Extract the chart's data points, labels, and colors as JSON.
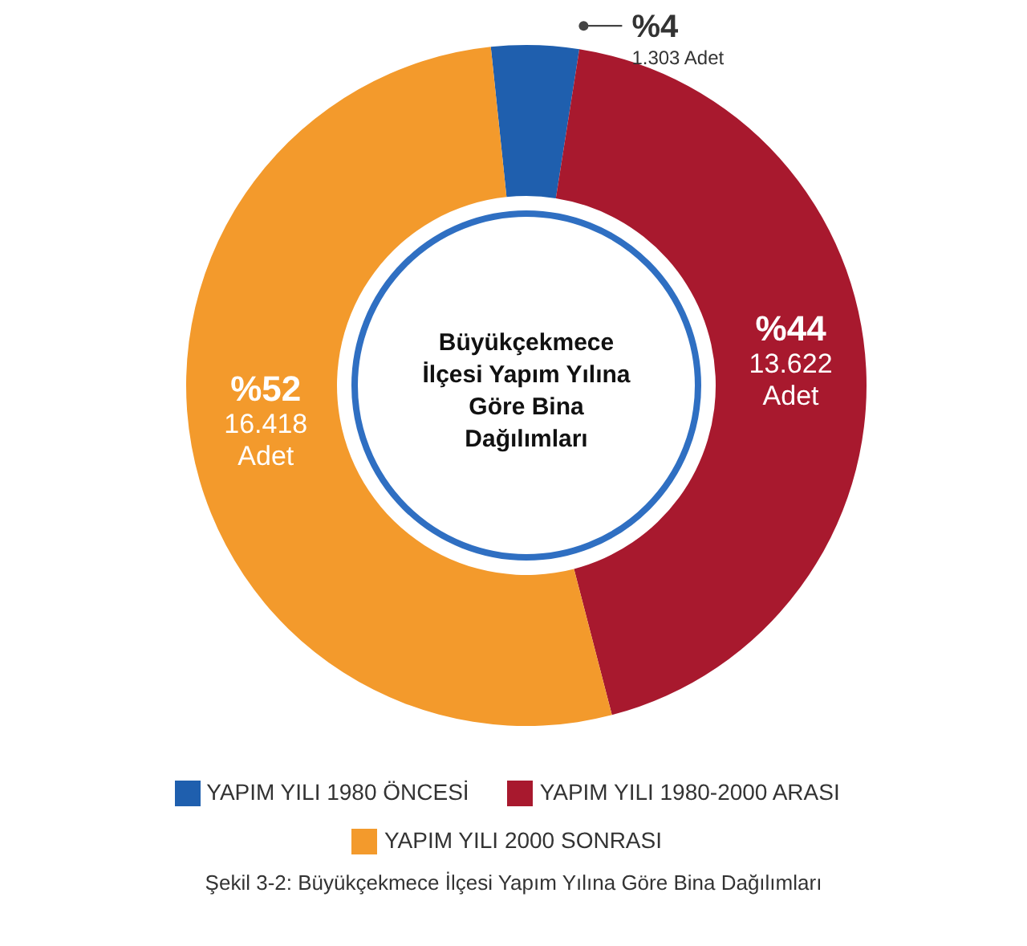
{
  "chart_data": {
    "type": "donut",
    "title": "Büyükçekmece İlçesi Yapım Yılına Göre Bina Dağılımları",
    "categories": [
      "YAPIM YILI 1980 ÖNCESİ",
      "YAPIM YILI 1980-2000 ARASI",
      "YAPIM YILI 2000 SONRASI"
    ],
    "values": [
      1303,
      13622,
      16418
    ],
    "colors": [
      "#1f5fae",
      "#a8192e",
      "#f39a2c"
    ],
    "value_labels": [
      "%4\n1.303 Adet",
      "%44\n13.622\nAdet",
      "%52\n16.418\nAdet"
    ],
    "legend": "bottom",
    "annotations": [
      "Şekil 3-2: Büyükçekmece İlçesi Yapım Yılına Göre Bina Dağılımları"
    ]
  }
}
